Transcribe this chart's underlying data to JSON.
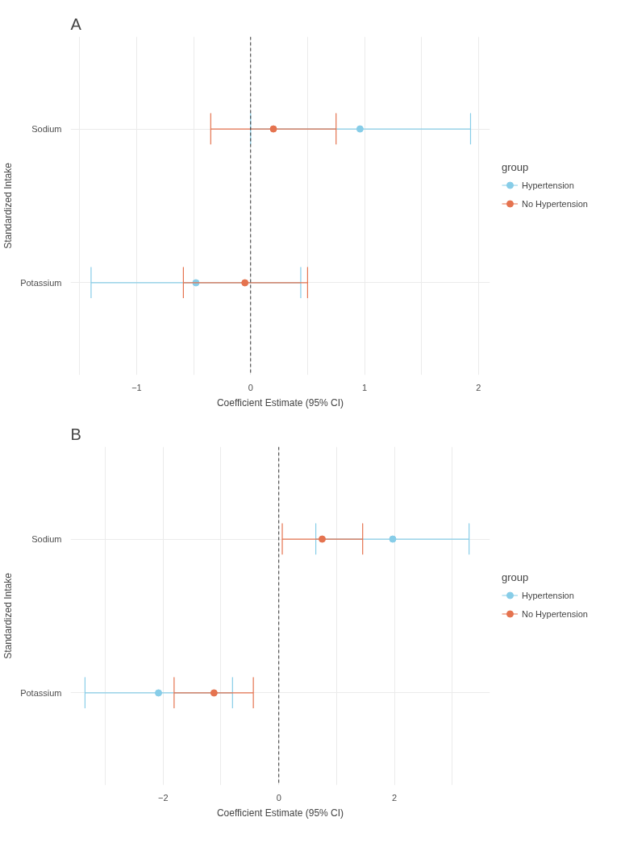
{
  "chart_data": [
    {
      "type": "scatter",
      "title": "A",
      "xlabel": "Coefficient Estimate (95% CI)",
      "ylabel": "Standardized Intake",
      "legend_title": "group",
      "orientation": "horizontal",
      "categories": [
        "Sodium",
        "Potassium"
      ],
      "series": [
        {
          "name": "Hypertension",
          "color": "#87cde8",
          "values": [
            0.96,
            -0.48
          ],
          "errors": [
            [
              0.0,
              1.93
            ],
            [
              -1.4,
              0.44
            ]
          ]
        },
        {
          "name": "No Hypertension",
          "color": "#e5734f",
          "values": [
            0.2,
            -0.05
          ],
          "errors": [
            [
              -0.35,
              0.75
            ],
            [
              -0.59,
              0.5
            ]
          ]
        }
      ],
      "xlim": [
        -1.58,
        2.1
      ],
      "xticks": [
        {
          "value": -1.5,
          "label": null
        },
        -1,
        {
          "value": -0.5,
          "label": null
        },
        0,
        {
          "value": 0.5,
          "label": null
        },
        1,
        {
          "value": 1.5,
          "label": null
        },
        2
      ],
      "ref_lines": [
        {
          "axis": "x",
          "value": 0,
          "color": "#333333",
          "line_style": "dashed"
        }
      ],
      "grid": true,
      "legend": "right",
      "marker": "circle"
    },
    {
      "type": "scatter",
      "title": "B",
      "xlabel": "Coefficient Estimate (95% CI)",
      "ylabel": "Standardized Intake",
      "legend_title": "group",
      "orientation": "horizontal",
      "categories": [
        "Sodium",
        "Potassium"
      ],
      "series": [
        {
          "name": "Hypertension",
          "color": "#87cde8",
          "values": [
            1.97,
            -2.08
          ],
          "errors": [
            [
              0.64,
              3.29
            ],
            [
              -3.35,
              -0.8
            ]
          ]
        },
        {
          "name": "No Hypertension",
          "color": "#e5734f",
          "values": [
            0.75,
            -1.12
          ],
          "errors": [
            [
              0.06,
              1.45
            ],
            [
              -1.81,
              -0.44
            ]
          ]
        }
      ],
      "xlim": [
        -3.6,
        3.65
      ],
      "xticks": [
        {
          "value": -3,
          "label": null
        },
        -2,
        {
          "value": -1,
          "label": null
        },
        0,
        {
          "value": 1,
          "label": null
        },
        2,
        {
          "value": 3,
          "label": null
        }
      ],
      "ref_lines": [
        {
          "axis": "x",
          "value": 0,
          "color": "#333333",
          "line_style": "dashed"
        }
      ],
      "grid": true,
      "legend": "right",
      "marker": "circle"
    }
  ]
}
